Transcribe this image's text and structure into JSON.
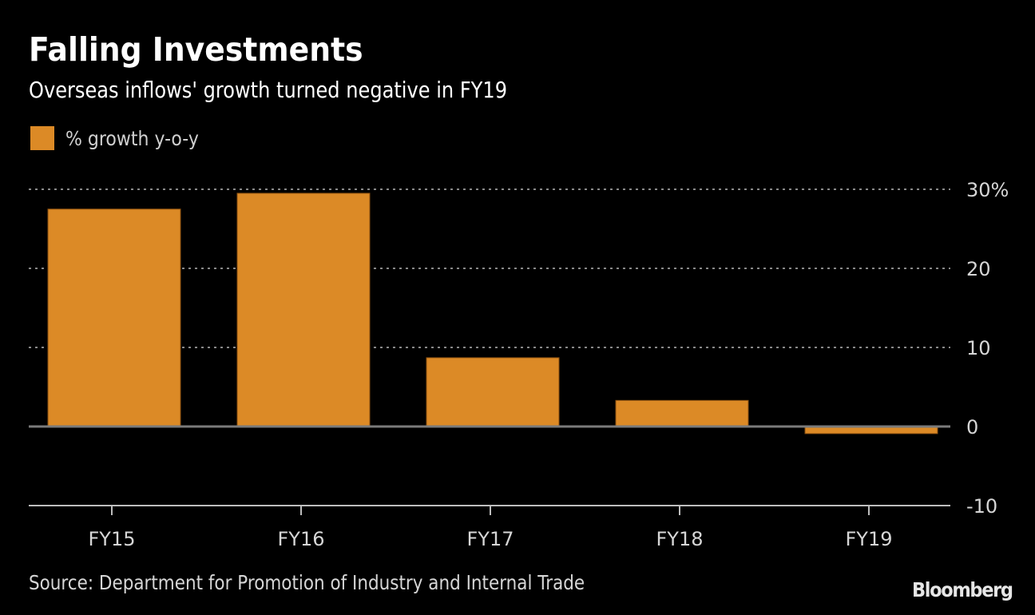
{
  "chart_data": {
    "type": "bar",
    "title": "Falling Investments",
    "subtitle": "Overseas inflows' growth turned negative in FY19",
    "categories": [
      "FY15",
      "FY16",
      "FY17",
      "FY18",
      "FY19"
    ],
    "series": [
      {
        "name": "% growth y-o-y",
        "color": "#dc8a26",
        "values": [
          27.5,
          29.5,
          8.7,
          3.3,
          -0.9
        ]
      }
    ],
    "xlabel": "",
    "ylabel": "",
    "ylim": [
      -10,
      30
    ],
    "yticks": [
      30,
      20,
      10,
      0,
      -10
    ],
    "ytick_labels": [
      "30%",
      "20",
      "10",
      "0",
      "-10"
    ],
    "y_axis_side": "right",
    "grid": true,
    "legend_position": "top-left",
    "source": "Source: Department for Promotion of Industry and Internal Trade",
    "brand": "Bloomberg"
  },
  "colors": {
    "background": "#000000",
    "bar": "#dc8a26",
    "grid": "#8a8a8a",
    "zero_line": "#7a7a7a",
    "axis": "#bdbdbd"
  }
}
